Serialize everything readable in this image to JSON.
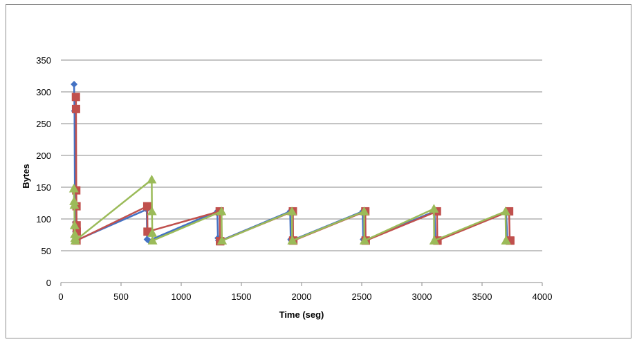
{
  "chart_data": {
    "type": "line",
    "title": "",
    "xlabel": "Time (seg)",
    "ylabel": "Bytes",
    "xlim": [
      0,
      4000
    ],
    "ylim": [
      0,
      350
    ],
    "x_ticks": [
      0,
      500,
      1000,
      1500,
      2000,
      2500,
      3000,
      3500,
      4000
    ],
    "y_ticks": [
      0,
      50,
      100,
      150,
      200,
      250,
      300,
      350
    ],
    "grid": true,
    "legend": "none",
    "series": [
      {
        "color": "#4472C4",
        "marker": "diamond",
        "x": [
          110,
          113,
          116,
          118,
          120,
          122,
          124,
          714,
          716,
          730,
          1300,
          1305,
          1310,
          1328,
          1905,
          1910,
          1915,
          2508,
          2512,
          2520,
          3105,
          3112,
          3118,
          3700,
          3710,
          3722
        ],
        "y": [
          312,
          270,
          145,
          120,
          95,
          80,
          66,
          115,
          68,
          66,
          112,
          70,
          66,
          66,
          112,
          68,
          66,
          112,
          68,
          66,
          112,
          68,
          66,
          112,
          68,
          66
        ]
      },
      {
        "color": "#C0504D",
        "marker": "square",
        "x": [
          125,
          126,
          128,
          130,
          131,
          132,
          130,
          718,
          720,
          1320,
          1322,
          1325,
          1928,
          1930,
          1932,
          2530,
          2532,
          2534,
          3125,
          3128,
          3130,
          3725,
          3730,
          3735
        ],
        "y": [
          292,
          273,
          145,
          120,
          90,
          80,
          66,
          120,
          80,
          112,
          65,
          65,
          112,
          66,
          66,
          112,
          66,
          66,
          112,
          66,
          66,
          112,
          66,
          66
        ]
      },
      {
        "color": "#9BBB59",
        "marker": "triangle",
        "x": [
          108,
          110,
          112,
          114,
          116,
          118,
          120,
          755,
          757,
          760,
          762,
          1335,
          1338,
          1340,
          1920,
          1922,
          1925,
          2520,
          2522,
          2525,
          3100,
          3102,
          3104,
          3695,
          3698,
          3700
        ],
        "y": [
          148,
          128,
          122,
          90,
          76,
          70,
          66,
          162,
          112,
          78,
          66,
          112,
          66,
          66,
          112,
          66,
          66,
          112,
          66,
          66,
          116,
          66,
          66,
          112,
          66,
          66
        ]
      }
    ]
  }
}
